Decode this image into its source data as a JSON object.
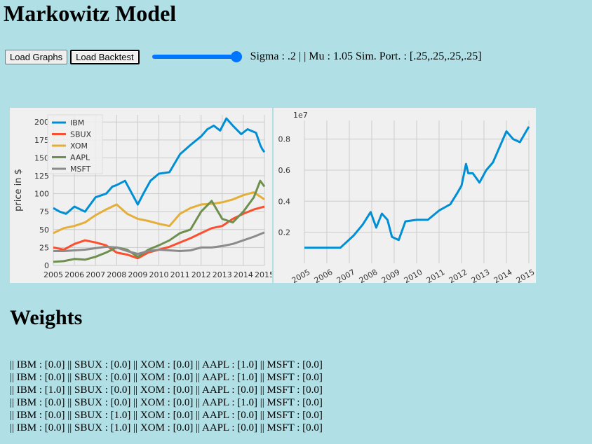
{
  "page": {
    "title": "Markowitz Model",
    "weights_heading": "Weights"
  },
  "controls": {
    "load_graphs_label": "Load Graphs",
    "load_backtest_label": "Load Backtest",
    "slider_value": 1.0,
    "params_text": "Sigma : .2 | | Mu : 1.05 Sim. Port. : [.25,.25,.25,.25]"
  },
  "weights": [
    "|| IBM : [0.0] || SBUX : [0.0] || XOM : [0.0] || AAPL : [1.0] || MSFT : [0.0]",
    "|| IBM : [0.0] || SBUX : [0.0] || XOM : [0.0] || AAPL : [1.0] || MSFT : [0.0]",
    "|| IBM : [1.0] || SBUX : [0.0] || XOM : [0.0] || AAPL : [0.0] || MSFT : [0.0]",
    "|| IBM : [0.0] || SBUX : [0.0] || XOM : [0.0] || AAPL : [1.0] || MSFT : [0.0]",
    "|| IBM : [0.0] || SBUX : [1.0] || XOM : [0.0] || AAPL : [0.0] || MSFT : [0.0]",
    "|| IBM : [0.0] || SBUX : [1.0] || XOM : [0.0] || AAPL : [0.0] || MSFT : [0.0]"
  ],
  "chart_data": [
    {
      "type": "line",
      "title": "",
      "xlabel": "",
      "ylabel": "price in $",
      "xlim": [
        2005,
        2015
      ],
      "ylim": [
        0,
        210
      ],
      "xticks": [
        "2005",
        "2006",
        "2007",
        "2008",
        "2009",
        "2010",
        "2011",
        "2012",
        "2013",
        "2014",
        "2015"
      ],
      "yticks": [
        0,
        25,
        50,
        75,
        100,
        125,
        150,
        175,
        200
      ],
      "grid": true,
      "legend": "top-left",
      "series": [
        {
          "name": "IBM",
          "color": "#008fd5",
          "x": [
            2005,
            2005.3,
            2005.6,
            2006,
            2006.5,
            2007,
            2007.5,
            2007.8,
            2008,
            2008.4,
            2008.8,
            2009,
            2009.3,
            2009.6,
            2010,
            2010.5,
            2011,
            2011.5,
            2012,
            2012.3,
            2012.6,
            2012.9,
            2013.2,
            2013.5,
            2013.9,
            2014.2,
            2014.6,
            2014.8,
            2014.9,
            2015
          ],
          "y": [
            80,
            75,
            72,
            82,
            75,
            95,
            100,
            110,
            112,
            118,
            96,
            85,
            102,
            118,
            128,
            130,
            155,
            168,
            180,
            190,
            195,
            188,
            205,
            195,
            183,
            190,
            185,
            168,
            162,
            158
          ]
        },
        {
          "name": "SBUX",
          "color": "#fc4f30",
          "x": [
            2005,
            2005.5,
            2006,
            2006.5,
            2007,
            2007.5,
            2008,
            2008.5,
            2009,
            2009.5,
            2010,
            2010.5,
            2011,
            2011.5,
            2012,
            2012.5,
            2013,
            2013.5,
            2014,
            2014.5,
            2015
          ],
          "y": [
            25,
            22,
            30,
            35,
            32,
            28,
            18,
            15,
            10,
            18,
            22,
            26,
            32,
            38,
            45,
            52,
            55,
            65,
            72,
            78,
            82
          ]
        },
        {
          "name": "XOM",
          "color": "#e5ae38",
          "x": [
            2005,
            2005.5,
            2006,
            2006.5,
            2007,
            2007.5,
            2008,
            2008.5,
            2009,
            2009.5,
            2010,
            2010.5,
            2011,
            2011.5,
            2012,
            2012.5,
            2013,
            2013.5,
            2014,
            2014.5,
            2015
          ],
          "y": [
            45,
            52,
            55,
            60,
            70,
            78,
            85,
            72,
            65,
            62,
            58,
            55,
            72,
            80,
            85,
            86,
            88,
            92,
            98,
            102,
            92
          ]
        },
        {
          "name": "AAPL",
          "color": "#6d904f",
          "x": [
            2005,
            2005.5,
            2006,
            2006.5,
            2007,
            2007.5,
            2008,
            2008.5,
            2009,
            2009.5,
            2010,
            2010.5,
            2011,
            2011.5,
            2012,
            2012.5,
            2013,
            2013.5,
            2014,
            2014.5,
            2014.8,
            2015
          ],
          "y": [
            5,
            6,
            9,
            8,
            12,
            18,
            25,
            22,
            12,
            22,
            28,
            35,
            45,
            50,
            75,
            90,
            65,
            60,
            75,
            95,
            118,
            110
          ]
        },
        {
          "name": "MSFT",
          "color": "#8b8b8b",
          "x": [
            2005,
            2005.5,
            2006,
            2006.5,
            2007,
            2007.5,
            2008,
            2008.5,
            2009,
            2009.5,
            2010,
            2010.5,
            2011,
            2011.5,
            2012,
            2012.5,
            2013,
            2013.5,
            2014,
            2014.5,
            2015
          ],
          "y": [
            20,
            20,
            21,
            22,
            24,
            26,
            25,
            20,
            16,
            20,
            22,
            21,
            20,
            21,
            25,
            25,
            27,
            30,
            35,
            40,
            46
          ]
        }
      ]
    },
    {
      "type": "line",
      "title": "",
      "xlabel": "",
      "ylabel": "",
      "y_scale_label": "1e7",
      "xlim": [
        2005,
        2015
      ],
      "ylim": [
        0.0,
        0.92
      ],
      "xticks": [
        "2005",
        "2006",
        "2007",
        "2008",
        "2009",
        "2010",
        "2011",
        "2012",
        "2013",
        "2014",
        "2015"
      ],
      "yticks": [
        "0.2",
        "0.4",
        "0.6",
        "0.8"
      ],
      "grid": true,
      "legend": "none",
      "series": [
        {
          "color": "#008fd5",
          "x": [
            2005,
            2006.6,
            2007.2,
            2007.6,
            2007.95,
            2008.2,
            2008.45,
            2008.7,
            2008.9,
            2009.2,
            2009.5,
            2010,
            2010.5,
            2011,
            2011.5,
            2011.8,
            2012.0,
            2012.2,
            2012.3,
            2012.5,
            2012.8,
            2013.1,
            2013.4,
            2013.7,
            2014.0,
            2014.3,
            2014.6,
            2015
          ],
          "y": [
            0.1,
            0.1,
            0.18,
            0.25,
            0.33,
            0.23,
            0.32,
            0.28,
            0.17,
            0.15,
            0.27,
            0.28,
            0.28,
            0.34,
            0.38,
            0.45,
            0.5,
            0.64,
            0.58,
            0.58,
            0.52,
            0.6,
            0.65,
            0.75,
            0.85,
            0.8,
            0.78,
            0.88
          ]
        }
      ]
    }
  ]
}
